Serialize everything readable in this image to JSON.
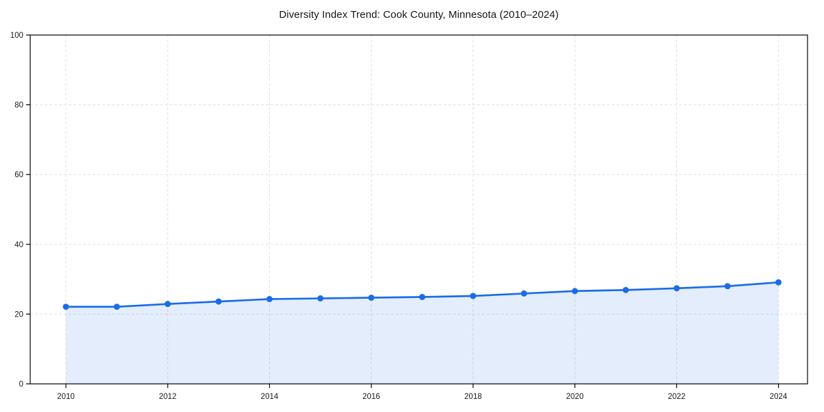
{
  "page": {
    "background_color": "#ffffff"
  },
  "chart_data": {
    "type": "line",
    "title": "Diversity Index Trend: Cook County, Minnesota (2010–2024)",
    "xlabel": "",
    "ylabel": "",
    "x": [
      2010,
      2011,
      2012,
      2013,
      2014,
      2015,
      2016,
      2017,
      2018,
      2019,
      2020,
      2021,
      2022,
      2023,
      2024
    ],
    "series": [
      {
        "name": "Diversity Index",
        "values": [
          22.1,
          22.1,
          22.9,
          23.6,
          24.3,
          24.5,
          24.7,
          24.9,
          25.2,
          25.9,
          26.6,
          26.9,
          27.4,
          28.0,
          29.1
        ]
      }
    ],
    "ylim": [
      0,
      100
    ],
    "yticks": [
      0,
      20,
      40,
      60,
      80,
      100
    ],
    "xticks": [
      2010,
      2012,
      2014,
      2016,
      2018,
      2020,
      2022,
      2024
    ],
    "grid": true,
    "grid_style": "dashed",
    "legend_position": "none",
    "marker": "circle",
    "area_fill": true,
    "colors": {
      "line": "#1a6ce8",
      "fill_opacity": 0.12,
      "grid": "#e0e0e0",
      "axis": "#000000",
      "text": "#1a1a1a",
      "background": "#ffffff"
    }
  }
}
